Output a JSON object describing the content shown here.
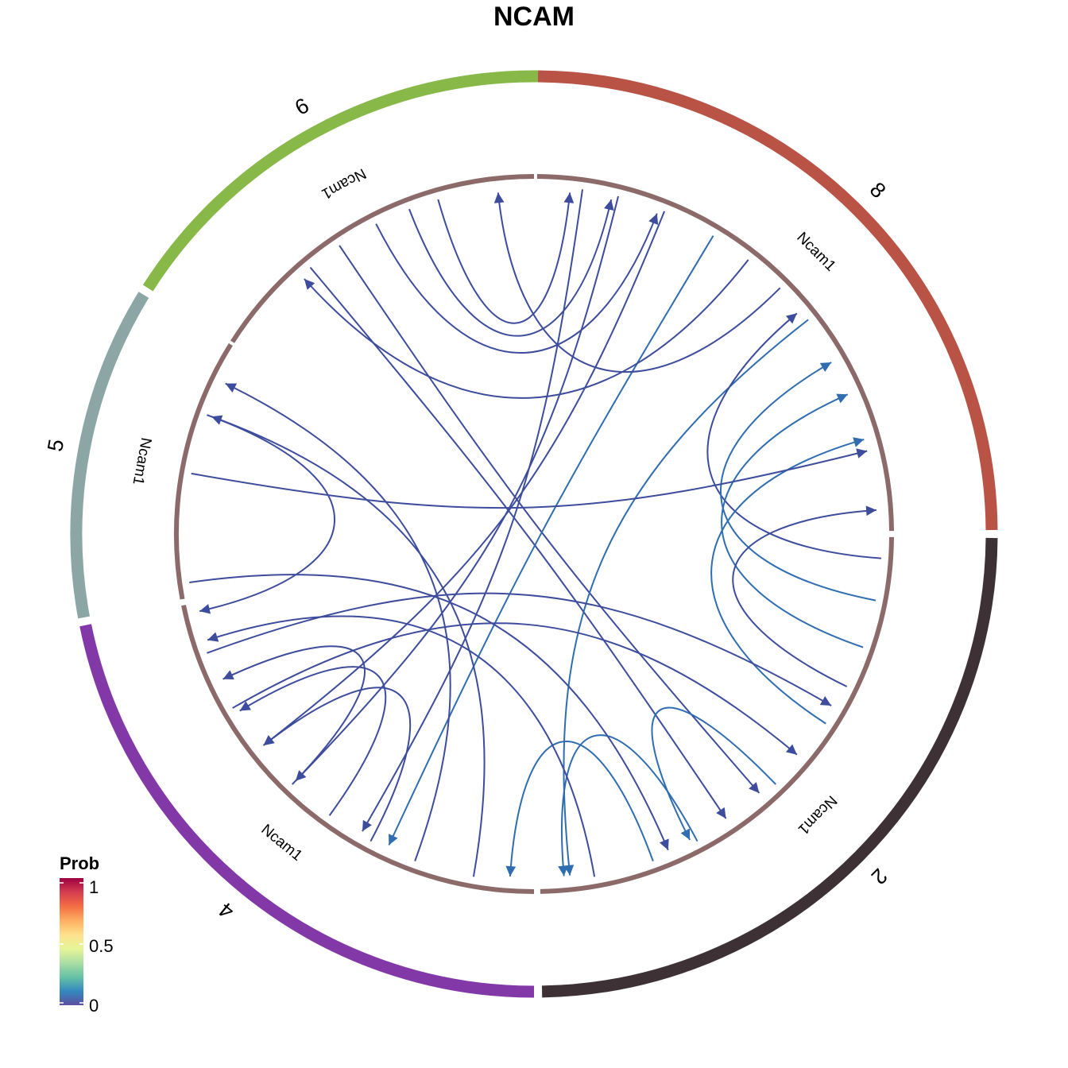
{
  "title": "NCAM",
  "groups": [
    {
      "name": "8",
      "color": "#B85346"
    },
    {
      "name": "2",
      "color": "#3E3136"
    },
    {
      "name": "4",
      "color": "#8338A8"
    },
    {
      "name": "5",
      "color": "#8CA6A6"
    },
    {
      "name": "6",
      "color": "#87B848"
    }
  ],
  "gene_labels": [
    "Ncam1",
    "Ncam1",
    "Ncam1",
    "Ncam1",
    "Ncam1"
  ],
  "inner_ring_color": "#8C6A6A",
  "edge_colors": {
    "low": "#3D4C9C",
    "mid": "#2F6DB0"
  },
  "legend": {
    "title": "Prob",
    "ticks": [
      "1",
      "0.5",
      "0"
    ],
    "gradient": [
      "#5E4FA2",
      "#3288BD",
      "#66C2A5",
      "#ABDDA4",
      "#E6F598",
      "#FEE08B",
      "#FDAE61",
      "#F46D43",
      "#D53E4F",
      "#9E0142"
    ]
  }
}
